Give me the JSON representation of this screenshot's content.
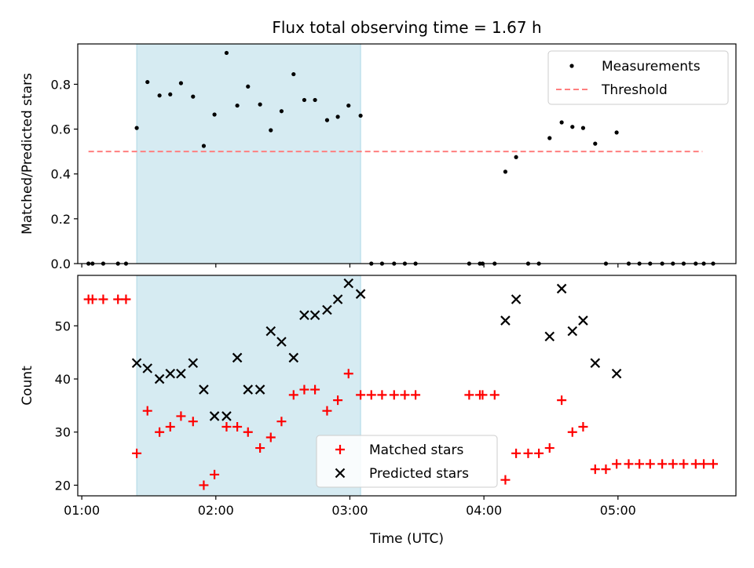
{
  "title": "Flux total observing time = 1.67 h",
  "colors": {
    "shade": "#add8e6",
    "threshold": "#ff7f7f",
    "measurement": "#000000",
    "matched": "#ff0000",
    "predicted": "#000000"
  },
  "chart_data": [
    {
      "type": "scatter",
      "panel": "top",
      "ylabel": "Matched/Predicted stars",
      "xlabel": "",
      "xlim": [
        0.97,
        5.88
      ],
      "ylim": [
        0.0,
        0.98
      ],
      "x_ticks": [
        1,
        2,
        3,
        4,
        5
      ],
      "x_tick_labels": [],
      "y_ticks": [
        0.0,
        0.2,
        0.4,
        0.6,
        0.8
      ],
      "y_tick_labels": [
        "0.0",
        "0.2",
        "0.4",
        "0.6",
        "0.8"
      ],
      "shaded_span": [
        1.41,
        3.08
      ],
      "legend": {
        "placement": "top-right",
        "entries": [
          "Measurements",
          "Threshold"
        ]
      },
      "threshold": {
        "name": "Threshold",
        "y": 0.5,
        "x": [
          1.05,
          5.63
        ]
      },
      "series": [
        {
          "name": "Measurements",
          "x": [
            1.05,
            1.08,
            1.16,
            1.27,
            1.33,
            1.41,
            1.49,
            1.58,
            1.66,
            1.74,
            1.83,
            1.91,
            1.99,
            2.08,
            2.16,
            2.24,
            2.33,
            2.41,
            2.49,
            2.58,
            2.66,
            2.74,
            2.83,
            2.91,
            2.99,
            3.08,
            3.16,
            3.24,
            3.33,
            3.41,
            3.49,
            3.89,
            3.97,
            3.99,
            4.08,
            4.16,
            4.24,
            4.33,
            4.41,
            4.49,
            4.58,
            4.66,
            4.74,
            4.83,
            4.91,
            4.99,
            5.08,
            5.16,
            5.24,
            5.33,
            5.41,
            5.49,
            5.58,
            5.64,
            5.71
          ],
          "y": [
            0,
            0,
            0,
            0,
            0,
            0.605,
            0.81,
            0.75,
            0.755,
            0.805,
            0.745,
            0.525,
            0.665,
            0.94,
            0.705,
            0.79,
            0.71,
            0.595,
            0.68,
            0.845,
            0.73,
            0.73,
            0.64,
            0.655,
            0.705,
            0.66,
            0,
            0,
            0,
            0,
            0,
            0,
            0,
            0,
            0,
            0.41,
            0.475,
            0,
            0,
            0.56,
            0.63,
            0.61,
            0.605,
            0.535,
            0,
            0.585,
            0,
            0,
            0,
            0,
            0,
            0,
            0,
            0,
            0
          ]
        }
      ]
    },
    {
      "type": "scatter",
      "panel": "bottom",
      "xlabel": "Time (UTC)",
      "ylabel": "Count",
      "xlim": [
        0.97,
        5.88
      ],
      "ylim": [
        18,
        59.5
      ],
      "x_ticks": [
        1,
        2,
        3,
        4,
        5
      ],
      "x_tick_labels": [
        "01:00",
        "02:00",
        "03:00",
        "04:00",
        "05:00"
      ],
      "y_ticks": [
        20,
        30,
        40,
        50
      ],
      "y_tick_labels": [
        "20",
        "30",
        "40",
        "50"
      ],
      "shaded_span": [
        1.41,
        3.08
      ],
      "legend": {
        "placement": "lower-center",
        "entries": [
          "Matched stars",
          "Predicted stars"
        ]
      },
      "series": [
        {
          "name": "Matched stars",
          "x": [
            1.05,
            1.08,
            1.16,
            1.27,
            1.33,
            1.41,
            1.49,
            1.58,
            1.66,
            1.74,
            1.83,
            1.91,
            1.99,
            2.08,
            2.16,
            2.24,
            2.33,
            2.41,
            2.49,
            2.58,
            2.66,
            2.74,
            2.83,
            2.91,
            2.99,
            3.08,
            3.16,
            3.24,
            3.33,
            3.41,
            3.49,
            3.89,
            3.97,
            3.99,
            4.08,
            4.16,
            4.24,
            4.33,
            4.41,
            4.49,
            4.58,
            4.66,
            4.74,
            4.83,
            4.91,
            4.99,
            5.08,
            5.16,
            5.24,
            5.33,
            5.41,
            5.49,
            5.58,
            5.64,
            5.71
          ],
          "y": [
            55,
            55,
            55,
            55,
            55,
            26,
            34,
            30,
            31,
            33,
            32,
            20,
            22,
            31,
            31,
            30,
            27,
            29,
            32,
            37,
            38,
            38,
            34,
            36,
            41,
            37,
            37,
            37,
            37,
            37,
            37,
            37,
            37,
            37,
            37,
            21,
            26,
            26,
            26,
            27,
            36,
            30,
            31,
            23,
            23,
            24,
            24,
            24,
            24,
            24,
            24,
            24,
            24,
            24,
            24
          ]
        },
        {
          "name": "Predicted stars",
          "x": [
            1.41,
            1.49,
            1.58,
            1.66,
            1.74,
            1.83,
            1.91,
            1.99,
            2.08,
            2.16,
            2.24,
            2.33,
            2.41,
            2.49,
            2.58,
            2.66,
            2.74,
            2.83,
            2.91,
            2.99,
            3.08,
            4.16,
            4.24,
            4.49,
            4.58,
            4.66,
            4.74,
            4.83,
            4.99
          ],
          "y": [
            43,
            42,
            40,
            41,
            41,
            43,
            38,
            33,
            33,
            44,
            38,
            38,
            49,
            47,
            44,
            52,
            52,
            53,
            55,
            58,
            56,
            51,
            55,
            48,
            57,
            49,
            51,
            43,
            41
          ]
        }
      ]
    }
  ]
}
